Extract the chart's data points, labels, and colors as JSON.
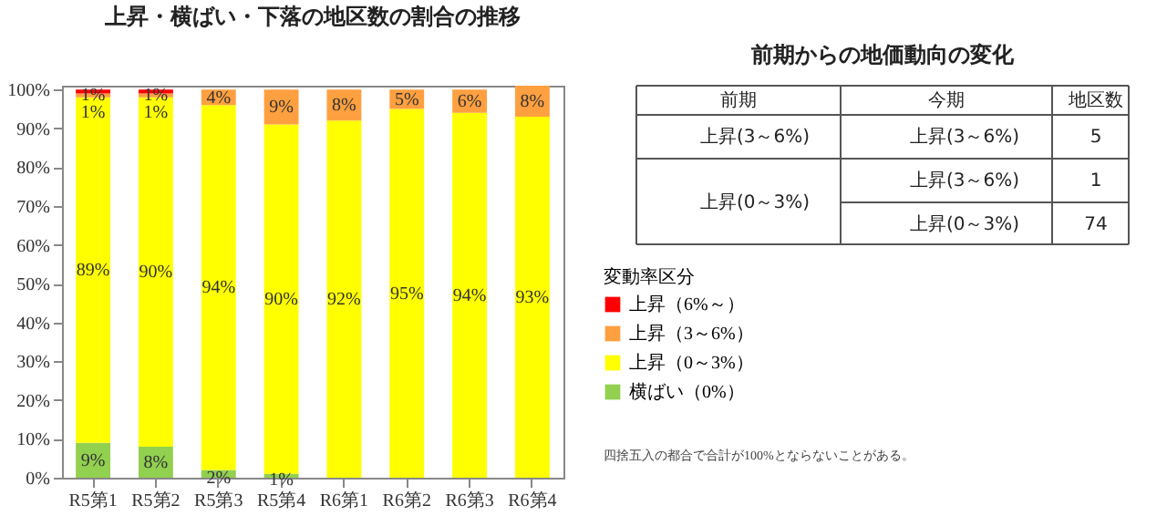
{
  "chart_data": [
    {
      "type": "bar",
      "title": "上昇・横ばい・下落の地区数の割合の推移",
      "stacked": true,
      "categories": [
        "R5第1",
        "R5第2",
        "R5第3",
        "R5第4",
        "R6第1",
        "R6第2",
        "R6第3",
        "R6第4"
      ],
      "series": [
        {
          "name": "横ばい（0%）",
          "color": "#92d050",
          "values": [
            9,
            8,
            2,
            1,
            0,
            0,
            0,
            0
          ],
          "value_labels": [
            "9%",
            "8%",
            "2%",
            "1%",
            null,
            null,
            null,
            null
          ]
        },
        {
          "name": "上昇（0～3%）",
          "color": "#ffff00",
          "values": [
            89,
            90,
            94,
            90,
            92,
            95,
            94,
            93
          ],
          "value_labels": [
            "89%",
            "90%",
            "94%",
            "90%",
            "92%",
            "95%",
            "94%",
            "93%"
          ]
        },
        {
          "name": "上昇（3～6%）",
          "color": "#ffa040",
          "values": [
            1,
            1,
            4,
            9,
            8,
            5,
            6,
            8
          ],
          "value_labels": [
            "1%",
            "1%",
            "4%",
            "9%",
            "8%",
            "5%",
            "6%",
            "8%"
          ]
        },
        {
          "name": "上昇（6%～）",
          "color": "#ff0000",
          "values": [
            1,
            1,
            0,
            0,
            0,
            0,
            0,
            0
          ],
          "value_labels": [
            "1%",
            "1%",
            null,
            null,
            null,
            null,
            null,
            null
          ]
        }
      ],
      "ylim": [
        0,
        101
      ],
      "yticks": [
        {
          "value": 0,
          "label": "0%"
        },
        {
          "value": 10,
          "label": "10%"
        },
        {
          "value": 20,
          "label": "20%"
        },
        {
          "value": 30,
          "label": "30%"
        },
        {
          "value": 40,
          "label": "40%"
        },
        {
          "value": 50,
          "label": "50%"
        },
        {
          "value": 60,
          "label": "60%"
        },
        {
          "value": 70,
          "label": "70%"
        },
        {
          "value": 80,
          "label": "80%"
        },
        {
          "value": 90,
          "label": "90%"
        },
        {
          "value": 100,
          "label": "100%"
        }
      ],
      "legend_title": "変動率区分",
      "legend": "right",
      "grid": false,
      "annotations": [
        "四捨五入の都合で合計が100%とならないことがある。"
      ]
    },
    {
      "type": "other",
      "title": "前期からの地価動向の変化",
      "annotations": [
        "前期",
        "今期",
        "地区数",
        "上昇(3～6%)",
        "上昇(3～6%)",
        "5",
        "上昇(0～3%)",
        "上昇(3～6%)",
        "1",
        "上昇(0～3%)",
        "74"
      ]
    }
  ]
}
